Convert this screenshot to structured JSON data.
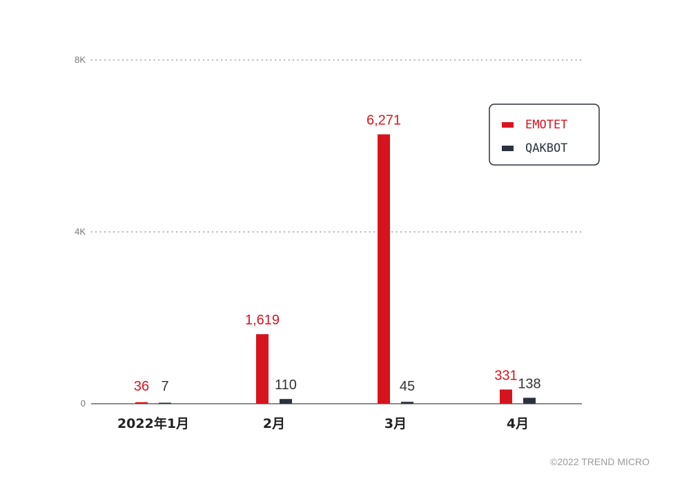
{
  "chart_data": {
    "type": "bar",
    "categories": [
      "2022年1月",
      "2月",
      "3月",
      "4月"
    ],
    "series": [
      {
        "name": "EMOTET",
        "values": [
          36,
          1619,
          6271,
          331
        ],
        "labels": [
          "36",
          "1,619",
          "6,271",
          "331"
        ],
        "color": "#d7141e"
      },
      {
        "name": "QAKBOT",
        "values": [
          7,
          110,
          45,
          138
        ],
        "labels": [
          "7",
          "110",
          "45",
          "138"
        ],
        "color": "#2b313d"
      }
    ],
    "yticks": [
      {
        "value": 0,
        "label": "0"
      },
      {
        "value": 4000,
        "label": "4K"
      },
      {
        "value": 8000,
        "label": "8K"
      }
    ],
    "ylim": [
      0,
      8000
    ],
    "grid": "dotted-horizontal",
    "legend_position": "top-right",
    "title": "",
    "xlabel": "",
    "ylabel": ""
  },
  "copyright": "©2022 TREND MICRO"
}
